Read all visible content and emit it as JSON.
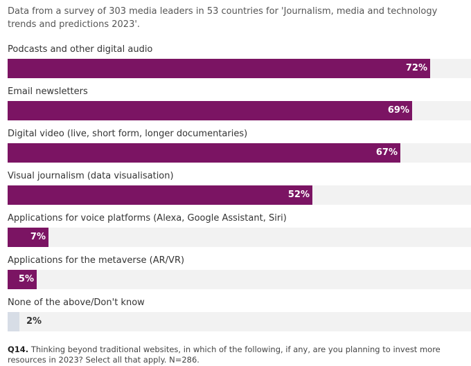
{
  "subtitle": "Data from a survey of 303 media leaders in 53 countries for 'Journalism, media and technology trends and predictions 2023'.",
  "footnote": {
    "label": "Q14.",
    "text": "Thinking beyond traditional websites, in which of the following, if any, are you planning to invest more resources in 2023? Select all that apply. N=286."
  },
  "colors": {
    "bar": "#7b1463",
    "bar_muted": "#d7dde6",
    "track": "#f2f2f2",
    "value_on_bar": "#ffffff",
    "value_off_bar": "#333333"
  },
  "chart_data": {
    "type": "bar",
    "orientation": "horizontal",
    "categories": [
      "Podcasts and other digital audio",
      "Email newsletters",
      "Digital video (live, short form, longer documentaries)",
      "Visual journalism (data visualisation)",
      "Applications for voice platforms (Alexa, Google Assistant, Siri)",
      "Applications for the metaverse (AR/VR)",
      "None of the above/Don't know"
    ],
    "values": [
      72,
      69,
      67,
      52,
      7,
      5,
      2
    ],
    "value_labels": [
      "72%",
      "69%",
      "67%",
      "52%",
      "7%",
      "5%",
      "2%"
    ],
    "xlim": [
      0,
      79
    ],
    "grid": false,
    "legend": "none"
  }
}
